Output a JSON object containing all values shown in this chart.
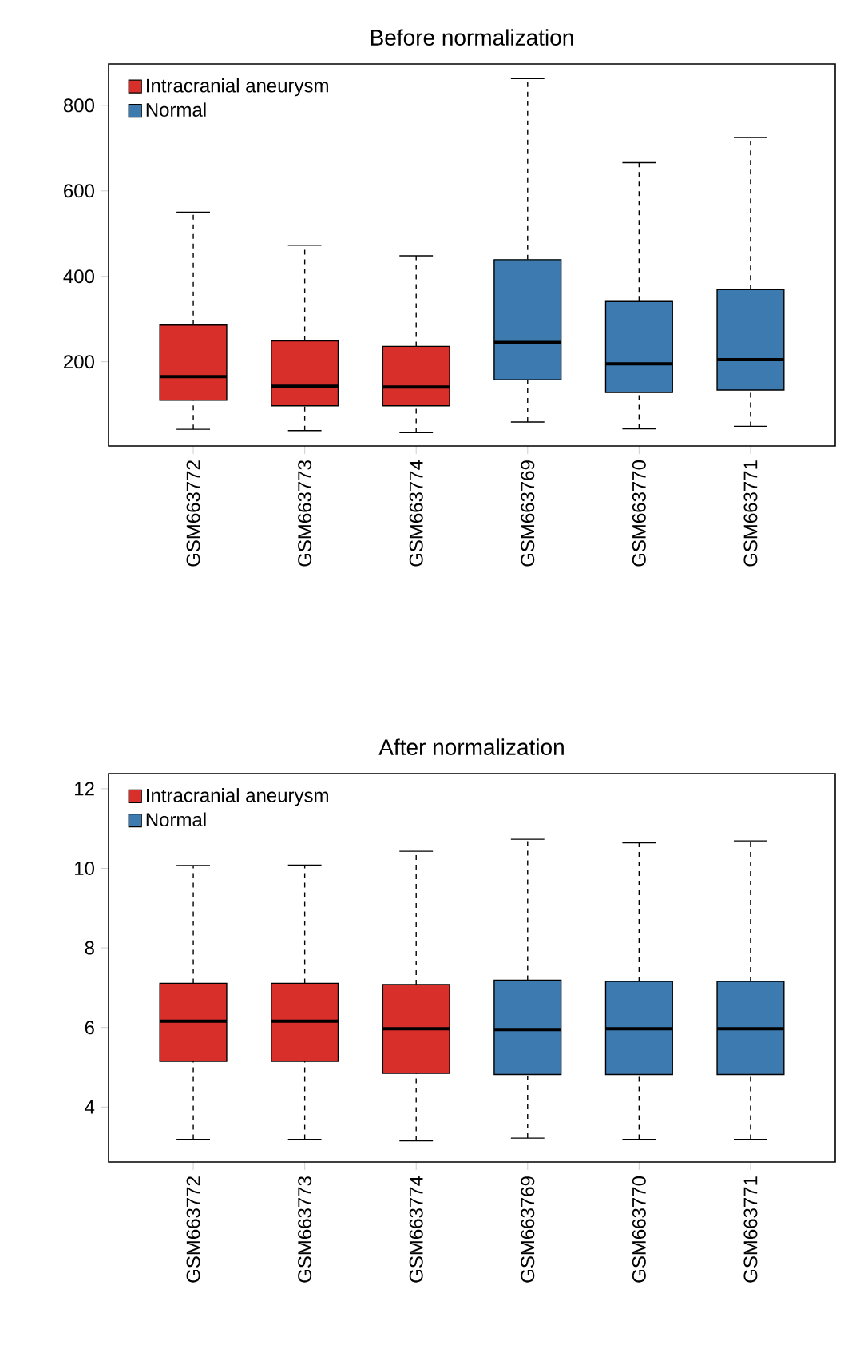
{
  "chart_data": [
    {
      "type": "box",
      "title": "Before normalization",
      "categories": [
        "GSM663772",
        "GSM663773",
        "GSM663774",
        "GSM663769",
        "GSM663770",
        "GSM663771"
      ],
      "ylim": [
        3,
        897
      ],
      "yticks": [
        200,
        400,
        600,
        800
      ],
      "legend": "top left",
      "series": [
        {
          "name": "Intracranial aneurysm",
          "color": "#d92f2b",
          "boxes": [
            {
              "low": 42,
              "q1": 110,
              "median": 165,
              "q3": 286,
              "high": 550
            },
            {
              "low": 39,
              "q1": 97,
              "median": 143,
              "q3": 249,
              "high": 473
            },
            {
              "low": 34,
              "q1": 97,
              "median": 141,
              "q3": 236,
              "high": 448
            },
            null,
            null,
            null
          ]
        },
        {
          "name": "Normal",
          "color": "#3c7ab0",
          "boxes": [
            null,
            null,
            null,
            {
              "low": 59,
              "q1": 158,
              "median": 245,
              "q3": 439,
              "high": 863
            },
            {
              "low": 43,
              "q1": 128,
              "median": 195,
              "q3": 341,
              "high": 666
            },
            {
              "low": 49,
              "q1": 134,
              "median": 205,
              "q3": 369,
              "high": 725
            }
          ]
        }
      ]
    },
    {
      "type": "box",
      "title": "After normalization",
      "categories": [
        "GSM663772",
        "GSM663773",
        "GSM663774",
        "GSM663769",
        "GSM663770",
        "GSM663771"
      ],
      "ylim": [
        2.62,
        12.38
      ],
      "yticks": [
        4,
        6,
        8,
        10,
        12
      ],
      "legend": "top left",
      "series": [
        {
          "name": "Intracranial aneurysm",
          "color": "#d92f2b",
          "boxes": [
            {
              "low": 3.19,
              "q1": 5.15,
              "median": 6.16,
              "q3": 7.11,
              "high": 10.07
            },
            {
              "low": 3.19,
              "q1": 5.15,
              "median": 6.16,
              "q3": 7.11,
              "high": 10.08
            },
            {
              "low": 3.15,
              "q1": 4.85,
              "median": 5.97,
              "q3": 7.08,
              "high": 10.43
            },
            null,
            null,
            null
          ]
        },
        {
          "name": "Normal",
          "color": "#3c7ab0",
          "boxes": [
            null,
            null,
            null,
            {
              "low": 3.22,
              "q1": 4.82,
              "median": 5.95,
              "q3": 7.19,
              "high": 10.73
            },
            {
              "low": 3.19,
              "q1": 4.82,
              "median": 5.97,
              "q3": 7.16,
              "high": 10.64
            },
            {
              "low": 3.19,
              "q1": 4.82,
              "median": 5.97,
              "q3": 7.16,
              "high": 10.69
            }
          ]
        }
      ]
    }
  ]
}
